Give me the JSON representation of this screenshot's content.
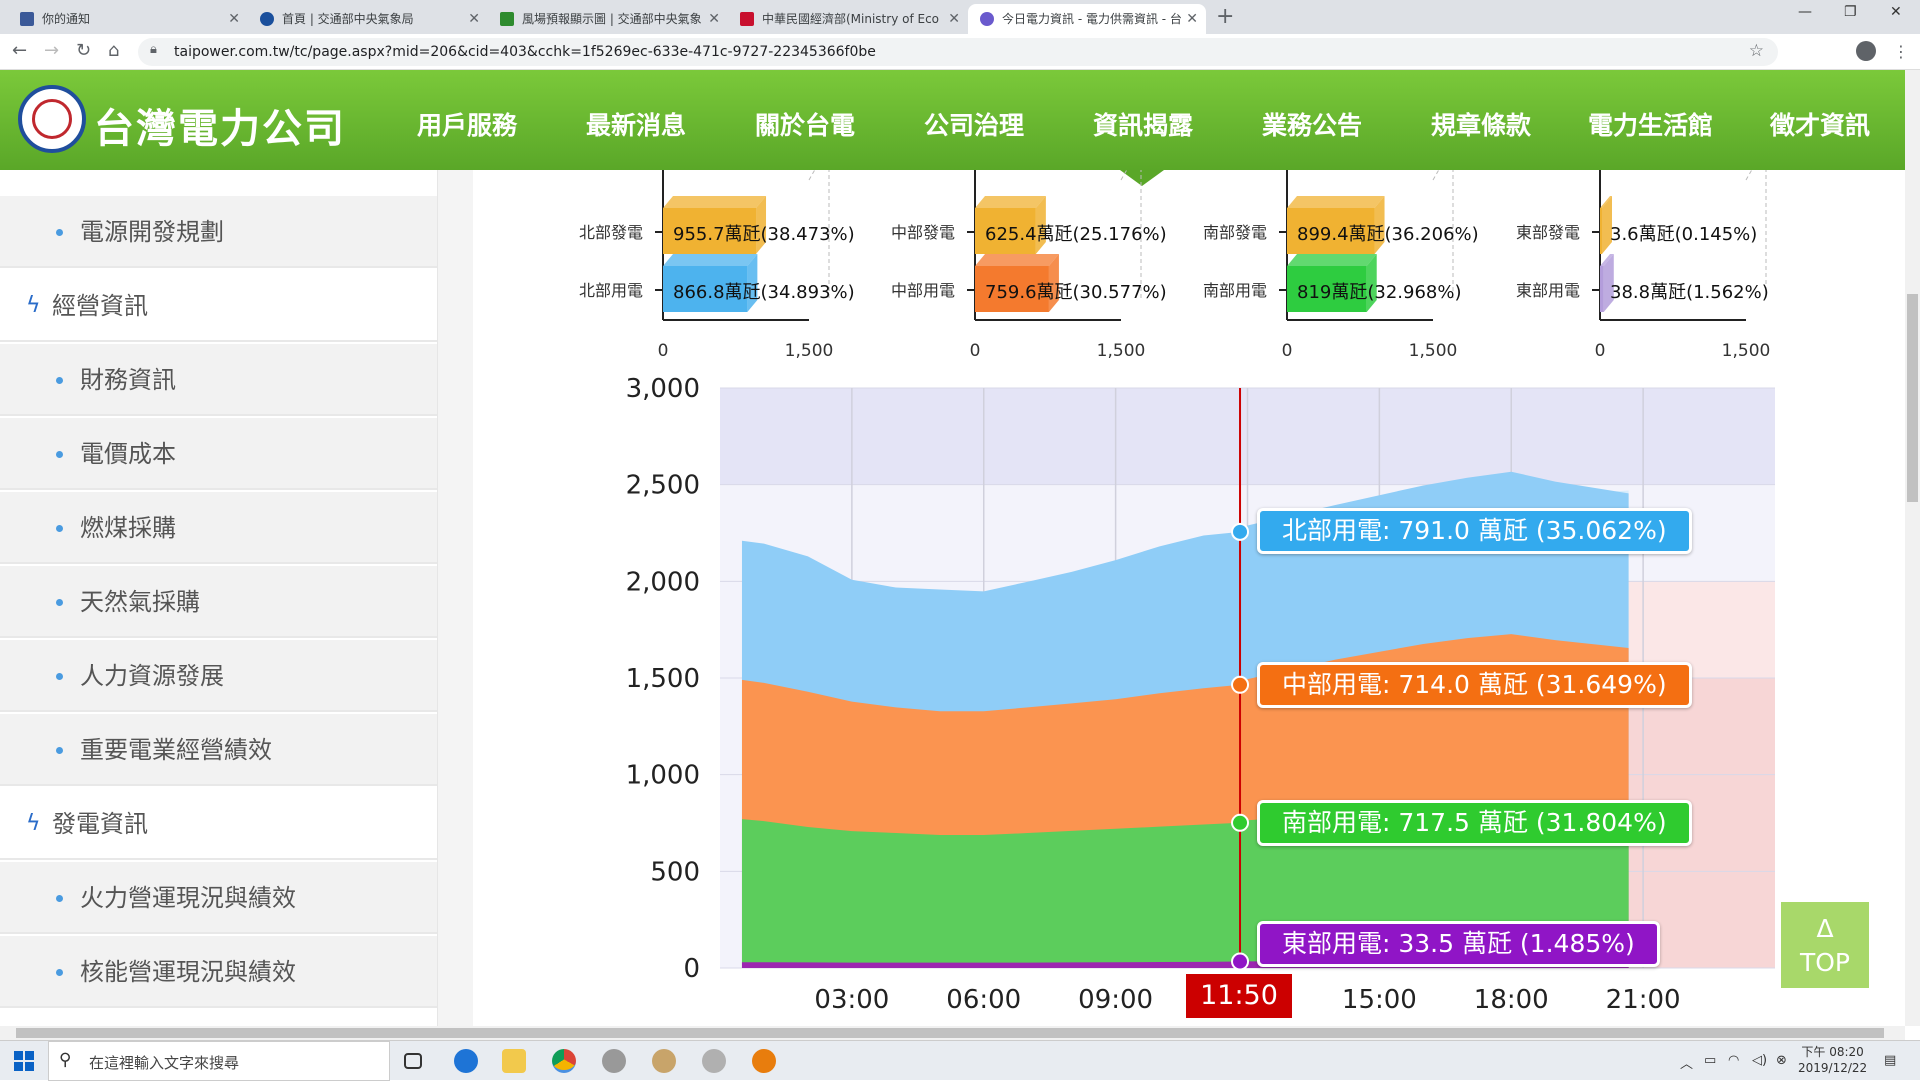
{
  "browser": {
    "tabs": [
      {
        "title": "你的通知",
        "favcolor": "#3b5998"
      },
      {
        "title": "首頁 | 交通部中央氣象局",
        "favcolor": "#1a4f9c"
      },
      {
        "title": "風場預報顯示圖 | 交通部中央氣象",
        "favcolor": "#2e8b2e"
      },
      {
        "title": "中華民國經濟部(Ministry of Eco",
        "favcolor": "#c8102e"
      },
      {
        "title": "今日電力資訊 - 電力供需資訊 - 台",
        "favcolor": "#6a5acd"
      }
    ],
    "url": "taipower.com.tw/tc/page.aspx?mid=206&cid=403&cchk=1f5269ec-633e-471c-9727-22345366f0be"
  },
  "site": {
    "logo_text": "台灣電力公司",
    "nav": [
      "用戶服務",
      "最新消息",
      "關於台電",
      "公司治理",
      "資訊揭露",
      "業務公告",
      "規章條款",
      "電力生活館",
      "徵才資訊"
    ]
  },
  "sidebar": {
    "items": [
      {
        "label": "電源開發規劃",
        "kind": "sub"
      },
      {
        "label": "經營資訊",
        "kind": "cat"
      },
      {
        "label": "財務資訊",
        "kind": "sub"
      },
      {
        "label": "電價成本",
        "kind": "sub"
      },
      {
        "label": "燃煤採購",
        "kind": "sub"
      },
      {
        "label": "天然氣採購",
        "kind": "sub"
      },
      {
        "label": "人力資源發展",
        "kind": "sub"
      },
      {
        "label": "重要電業經營績效",
        "kind": "sub"
      },
      {
        "label": "發電資訊",
        "kind": "cat"
      },
      {
        "label": "火力營運現況與績效",
        "kind": "sub"
      },
      {
        "label": "核能營運現況與績效",
        "kind": "sub"
      }
    ]
  },
  "chart_data": [
    {
      "type": "bar",
      "categories": [
        "北部發電",
        "北部用電"
      ],
      "values": [
        955.7,
        866.8
      ],
      "labels": [
        "955.7萬瓩(38.473%)",
        "866.8萬瓩(34.893%)"
      ],
      "colors": [
        "#f0b232",
        "#4db3ee"
      ],
      "xlim": [
        0,
        1500
      ],
      "xticks": [
        "0",
        "1,500"
      ]
    },
    {
      "type": "bar",
      "categories": [
        "中部發電",
        "中部用電"
      ],
      "values": [
        625.4,
        759.6
      ],
      "labels": [
        "625.4萬瓩(25.176%)",
        "759.6萬瓩(30.577%)"
      ],
      "colors": [
        "#f0b232",
        "#f47a2e"
      ],
      "xlim": [
        0,
        1500
      ],
      "xticks": [
        "0",
        "1,500"
      ]
    },
    {
      "type": "bar",
      "categories": [
        "南部發電",
        "南部用電"
      ],
      "values": [
        899.4,
        819
      ],
      "labels": [
        "899.4萬瓩(36.206%)",
        "819萬瓩(32.968%)"
      ],
      "colors": [
        "#f0b232",
        "#2ecc40"
      ],
      "xlim": [
        0,
        1500
      ],
      "xticks": [
        "0",
        "1,500"
      ]
    },
    {
      "type": "bar",
      "categories": [
        "東部發電",
        "東部用電"
      ],
      "values": [
        3.6,
        38.8
      ],
      "labels": [
        "3.6萬瓩(0.145%)",
        "38.8萬瓩(1.562%)"
      ],
      "colors": [
        "#f0b232",
        "#b39ddb"
      ],
      "xlim": [
        0,
        1500
      ],
      "xticks": [
        "0",
        "1,500"
      ]
    },
    {
      "type": "area",
      "stacked": true,
      "x_hours": [
        0.5,
        1,
        2,
        3,
        4,
        5,
        6,
        7,
        8,
        9,
        10,
        11,
        11.83,
        12,
        14,
        16,
        17,
        18,
        19,
        20.67
      ],
      "series": [
        {
          "name": "東部用電",
          "color": "#9c27b0",
          "values": [
            30,
            30,
            29,
            28,
            28,
            28,
            28,
            28,
            29,
            30,
            31,
            32,
            33.5,
            34,
            35,
            36,
            36,
            37,
            36,
            35
          ]
        },
        {
          "name": "南部用電",
          "color": "#5ccd5c",
          "values": [
            740,
            730,
            700,
            680,
            670,
            660,
            660,
            670,
            680,
            690,
            700,
            710,
            717.5,
            730,
            760,
            780,
            790,
            800,
            790,
            780
          ]
        },
        {
          "name": "中部用電",
          "color": "#fb9450",
          "values": [
            720,
            715,
            700,
            670,
            650,
            640,
            640,
            650,
            660,
            670,
            690,
            705,
            714,
            730,
            800,
            860,
            880,
            890,
            870,
            840
          ]
        },
        {
          "name": "北部用電",
          "color": "#8fcdf7",
          "values": [
            720,
            720,
            700,
            630,
            620,
            630,
            620,
            650,
            680,
            720,
            760,
            790,
            791,
            795,
            800,
            820,
            830,
            840,
            820,
            800
          ]
        }
      ],
      "upper_band": {
        "x_hours": [
          18,
          18.5,
          19,
          19.5,
          20,
          20.67
        ],
        "values": [
          2450,
          2500,
          2480,
          2470,
          2460,
          2470
        ],
        "color": "#d8ecfb"
      },
      "ylim": [
        0,
        3000
      ],
      "yticks": [
        "0",
        "500",
        "1,000",
        "1,500",
        "2,000",
        "2,500",
        "3,000"
      ],
      "xticks": [
        "03:00",
        "06:00",
        "09:00",
        "15:00",
        "18:00",
        "21:00"
      ],
      "current_time": "11:50",
      "tooltips": [
        {
          "text": "北部用電: 791.0 萬瓩 (35.062%)",
          "color": "#33aaee"
        },
        {
          "text": "中部用電: 714.0 萬瓩 (31.649%)",
          "color": "#f46f12"
        },
        {
          "text": "南部用電: 717.5 萬瓩 (31.804%)",
          "color": "#2fcb2f"
        },
        {
          "text": "東部用電: 33.5 萬瓩 (1.485%)",
          "color": "#9015c6"
        }
      ]
    }
  ],
  "top_button": {
    "arrow": "Δ",
    "label": "TOP"
  },
  "taskbar": {
    "search_placeholder": "在這裡輸入文字來搜尋",
    "time": "下午 08:20",
    "date": "2019/12/22"
  }
}
